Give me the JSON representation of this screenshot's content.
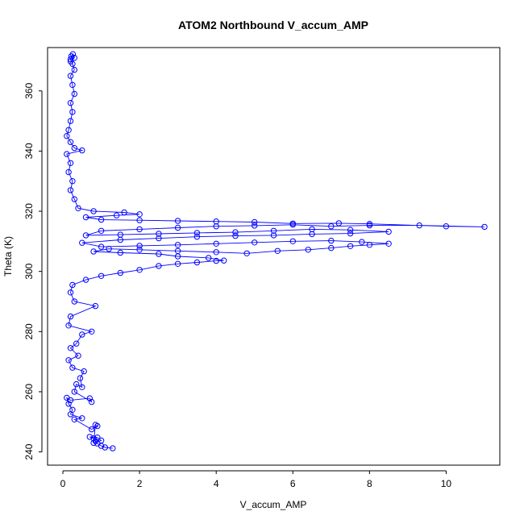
{
  "chart_data": {
    "type": "scatter",
    "title": "ATOM2 Northbound V_accum_AMP",
    "xlabel": "V_accum_AMP",
    "ylabel": "Theta (K)",
    "xlim": [
      -0.4,
      11.4
    ],
    "ylim": [
      235.6,
      374.4
    ],
    "x_ticks": [
      0,
      2,
      4,
      6,
      8,
      10
    ],
    "x_tick_labels": [
      "0",
      "2",
      "4",
      "6",
      "8",
      "10"
    ],
    "y_ticks": [
      240,
      260,
      280,
      300,
      320,
      340,
      360
    ],
    "y_tick_labels": [
      "240",
      "260",
      "280",
      "300",
      "320",
      "340",
      "360"
    ],
    "grid": false,
    "legend": "none",
    "style": "points-and-lines",
    "color": "#0000ff",
    "series": [
      {
        "points": [
          [
            1.3,
            241.2
          ],
          [
            1.1,
            241.5
          ],
          [
            1.0,
            242.0
          ],
          [
            0.9,
            242.8
          ],
          [
            0.85,
            243.6
          ],
          [
            0.8,
            244.5
          ],
          [
            0.7,
            245.0
          ],
          [
            0.9,
            244.8
          ],
          [
            1.0,
            243.8
          ],
          [
            0.8,
            243.0
          ],
          [
            0.85,
            249.0
          ],
          [
            0.9,
            248.6
          ],
          [
            0.75,
            247.5
          ],
          [
            0.3,
            250.8
          ],
          [
            0.5,
            251.2
          ],
          [
            0.2,
            252.5
          ],
          [
            0.25,
            254.0
          ],
          [
            0.15,
            256.0
          ],
          [
            0.1,
            258.0
          ],
          [
            0.2,
            257.2
          ],
          [
            0.7,
            257.8
          ],
          [
            0.75,
            256.6
          ],
          [
            0.3,
            260.0
          ],
          [
            0.35,
            262.5
          ],
          [
            0.5,
            261.5
          ],
          [
            0.45,
            264.5
          ],
          [
            0.55,
            266.8
          ],
          [
            0.25,
            268.0
          ],
          [
            0.15,
            270.5
          ],
          [
            0.4,
            272.0
          ],
          [
            0.2,
            274.5
          ],
          [
            0.35,
            276.0
          ],
          [
            0.5,
            279.0
          ],
          [
            0.75,
            280.0
          ],
          [
            0.15,
            282.0
          ],
          [
            0.2,
            285.0
          ],
          [
            0.85,
            288.5
          ],
          [
            0.3,
            290.0
          ],
          [
            0.2,
            293.0
          ],
          [
            0.25,
            295.5
          ],
          [
            0.6,
            297.2
          ],
          [
            1.0,
            298.5
          ],
          [
            1.5,
            299.5
          ],
          [
            2.0,
            300.5
          ],
          [
            2.5,
            301.8
          ],
          [
            3.0,
            302.5
          ],
          [
            3.5,
            303.0
          ],
          [
            4.0,
            303.5
          ],
          [
            4.2,
            303.6
          ],
          [
            3.8,
            304.5
          ],
          [
            3.0,
            305.0
          ],
          [
            2.5,
            305.8
          ],
          [
            1.5,
            306.2
          ],
          [
            0.8,
            306.6
          ],
          [
            1.2,
            307.5
          ],
          [
            2.0,
            307.2
          ],
          [
            3.0,
            306.8
          ],
          [
            4.0,
            306.4
          ],
          [
            4.8,
            306.0
          ],
          [
            5.6,
            306.8
          ],
          [
            6.4,
            307.2
          ],
          [
            7.0,
            307.8
          ],
          [
            7.5,
            308.4
          ],
          [
            8.0,
            308.8
          ],
          [
            8.5,
            309.2
          ],
          [
            7.8,
            309.8
          ],
          [
            7.0,
            310.2
          ],
          [
            6.0,
            310.0
          ],
          [
            5.0,
            309.6
          ],
          [
            4.0,
            309.2
          ],
          [
            3.0,
            308.8
          ],
          [
            2.0,
            308.5
          ],
          [
            1.0,
            308.2
          ],
          [
            0.5,
            309.5
          ],
          [
            1.5,
            310.5
          ],
          [
            2.5,
            311.0
          ],
          [
            3.5,
            311.5
          ],
          [
            4.5,
            311.8
          ],
          [
            5.5,
            312.0
          ],
          [
            6.5,
            312.4
          ],
          [
            7.5,
            312.6
          ],
          [
            8.5,
            313.2
          ],
          [
            7.5,
            313.8
          ],
          [
            6.5,
            314.0
          ],
          [
            5.5,
            313.5
          ],
          [
            4.5,
            313.0
          ],
          [
            3.5,
            312.8
          ],
          [
            2.5,
            312.5
          ],
          [
            1.5,
            312.2
          ],
          [
            0.6,
            312.0
          ],
          [
            1.0,
            313.5
          ],
          [
            2.0,
            314.0
          ],
          [
            3.0,
            314.5
          ],
          [
            4.0,
            315.0
          ],
          [
            5.0,
            315.2
          ],
          [
            6.0,
            315.5
          ],
          [
            7.0,
            315.0
          ],
          [
            8.0,
            315.3
          ],
          [
            9.3,
            315.3
          ],
          [
            11.0,
            314.8
          ],
          [
            10.0,
            315.0
          ],
          [
            8.0,
            315.8
          ],
          [
            7.2,
            316.0
          ],
          [
            6.0,
            315.9
          ],
          [
            5.0,
            316.4
          ],
          [
            4.0,
            316.6
          ],
          [
            3.0,
            316.8
          ],
          [
            2.0,
            317.0
          ],
          [
            1.0,
            317.2
          ],
          [
            0.6,
            318.0
          ],
          [
            1.4,
            318.6
          ],
          [
            2.0,
            319.0
          ],
          [
            1.6,
            319.6
          ],
          [
            0.8,
            320.0
          ],
          [
            0.4,
            321.0
          ],
          [
            0.3,
            324.0
          ],
          [
            0.2,
            327.0
          ],
          [
            0.25,
            330.0
          ],
          [
            0.15,
            333.0
          ],
          [
            0.2,
            336.0
          ],
          [
            0.1,
            339.0
          ],
          [
            0.5,
            340.2
          ],
          [
            0.3,
            341.0
          ],
          [
            0.2,
            343.0
          ],
          [
            0.1,
            345.0
          ],
          [
            0.15,
            347.0
          ],
          [
            0.2,
            350.0
          ],
          [
            0.25,
            353.0
          ],
          [
            0.2,
            356.0
          ],
          [
            0.3,
            359.0
          ],
          [
            0.25,
            362.0
          ],
          [
            0.2,
            365.0
          ],
          [
            0.3,
            367.0
          ],
          [
            0.25,
            369.0
          ],
          [
            0.2,
            370.5
          ],
          [
            0.22,
            371.5
          ],
          [
            0.26,
            372.2
          ],
          [
            0.3,
            371.0
          ],
          [
            0.2,
            369.8
          ]
        ]
      }
    ]
  }
}
